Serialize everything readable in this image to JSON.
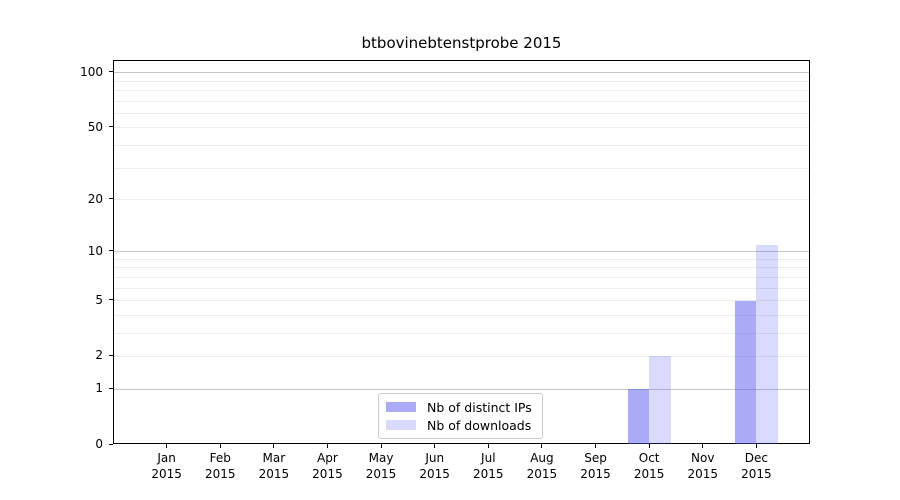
{
  "chart_data": {
    "type": "bar",
    "title": "btbovinebtenstprobe 2015",
    "categories": [
      "Jan 2015",
      "Feb 2015",
      "Mar 2015",
      "Apr 2015",
      "May 2015",
      "Jun 2015",
      "Jul 2015",
      "Aug 2015",
      "Sep 2015",
      "Oct 2015",
      "Nov 2015",
      "Dec 2015"
    ],
    "series": [
      {
        "name": "Nb of distinct IPs",
        "color": "rgba(85,85,240,0.5)",
        "values": [
          0,
          0,
          0,
          0,
          0,
          0,
          0,
          0,
          0,
          1,
          0,
          5
        ]
      },
      {
        "name": "Nb of downloads",
        "color": "rgba(85,85,240,0.22)",
        "values": [
          0,
          0,
          0,
          0,
          0,
          0,
          0,
          0,
          0,
          2,
          0,
          11
        ]
      }
    ],
    "yscale": "log1p",
    "yticks": [
      0,
      1,
      2,
      5,
      10,
      20,
      50,
      100
    ],
    "ylim": [
      0,
      116
    ],
    "xlabel": "",
    "ylabel": "",
    "grid": "horizontal",
    "gridlines_major": [
      1,
      10,
      100
    ],
    "gridlines_minor": [
      2,
      3,
      4,
      5,
      6,
      7,
      8,
      9,
      20,
      30,
      40,
      50,
      60,
      70,
      80,
      90
    ],
    "legend_position": "lower-center"
  },
  "colors": {
    "bar_distinct_ips": "rgba(85,85,240,0.5)",
    "bar_downloads": "rgba(85,85,240,0.22)",
    "major_grid": "#c6c6c6",
    "minor_grid": "#ececec",
    "axis": "#000000",
    "background": "#ffffff"
  }
}
